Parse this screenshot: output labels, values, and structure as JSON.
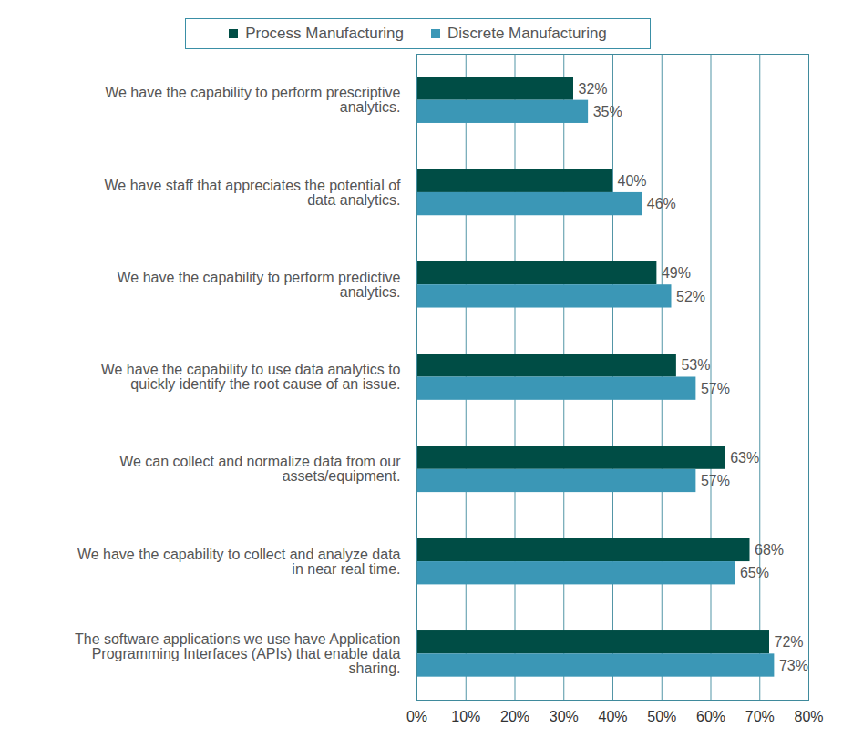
{
  "chart_data": {
    "type": "bar",
    "orientation": "horizontal",
    "categories": [
      "We have the capability to perform prescriptive analytics.",
      "We have staff that appreciates the potential of data analytics.",
      "We have the capability to perform predictive analytics.",
      "We have the capability to use data analytics to quickly identify the root cause of an issue.",
      "We can collect and normalize data from our assets/equipment.",
      "We have the capability to collect and analyze data in near real time.",
      "The software applications we use have Application Programming Interfaces (APIs) that enable data sharing."
    ],
    "series": [
      {
        "name": "Process Manufacturing",
        "color": "#004d45",
        "values": [
          32,
          40,
          49,
          53,
          63,
          68,
          72
        ],
        "value_labels": [
          "32%",
          "40%",
          "49%",
          "53%",
          "63%",
          "68%",
          "72%"
        ]
      },
      {
        "name": "Discrete Manufacturing",
        "color": "#3b97b6",
        "values": [
          35,
          46,
          52,
          57,
          57,
          65,
          73
        ],
        "value_labels": [
          "35%",
          "46%",
          "52%",
          "57%",
          "57%",
          "65%",
          "73%"
        ]
      }
    ],
    "xlim": [
      0,
      80
    ],
    "xticks": [
      {
        "value": 0,
        "label": "0%"
      },
      {
        "value": 10,
        "label": "10%"
      },
      {
        "value": 20,
        "label": "20%"
      },
      {
        "value": 30,
        "label": "30%"
      },
      {
        "value": 40,
        "label": "40%"
      },
      {
        "value": 50,
        "label": "50%"
      },
      {
        "value": 60,
        "label": "60%"
      },
      {
        "value": 70,
        "label": "70%"
      },
      {
        "value": 80,
        "label": "80%"
      }
    ],
    "grid": true,
    "legend": "top",
    "data_labels": true
  }
}
